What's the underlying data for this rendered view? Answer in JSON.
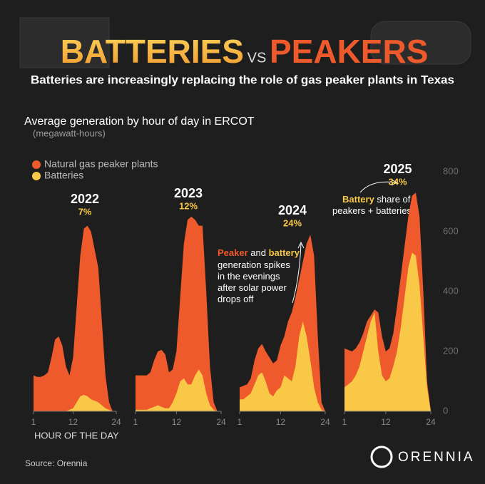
{
  "header": {
    "title_left": "BATTERIES",
    "title_vs": "VS",
    "title_right": "PEAKERS",
    "subtitle": "Batteries are increasingly replacing the role of gas peaker plants in Texas"
  },
  "chart_heading": "Average generation by hour of day in ERCOT",
  "units": "(megawatt-hours)",
  "x_axis_label": "HOUR OF THE DAY",
  "note_spikes": {
    "highlight_1": "Peaker",
    "text_1": " and ",
    "highlight_2": "battery",
    "lines": [
      "generation spikes",
      "in the evenings",
      "after solar power",
      "drops off"
    ]
  },
  "note_share": {
    "highlight": "Battery",
    "text": " share of",
    "line_2": "peakers + batteries"
  },
  "source": "Source: Orennia",
  "logo": "ORENNIA",
  "chart_data": [
    {
      "type": "area",
      "title": "2022",
      "annotation": "7%",
      "x": [
        1,
        2,
        3,
        4,
        5,
        6,
        7,
        8,
        9,
        10,
        11,
        12,
        13,
        14,
        15,
        16,
        17,
        18,
        19,
        20,
        21,
        22,
        23,
        24
      ],
      "xlim": [
        1,
        24
      ],
      "xticks": [
        1,
        12,
        24
      ],
      "ylim": [
        0,
        800
      ],
      "series": [
        {
          "name": "Natural gas peaker plants",
          "color": "#ee5a2c",
          "values": [
            120,
            115,
            115,
            120,
            130,
            180,
            240,
            250,
            220,
            150,
            120,
            180,
            350,
            520,
            610,
            620,
            600,
            540,
            480,
            300,
            120,
            30,
            0,
            0
          ]
        },
        {
          "name": "Batteries",
          "color": "#f9c846",
          "values": [
            0,
            0,
            0,
            0,
            0,
            0,
            0,
            0,
            0,
            0,
            5,
            10,
            30,
            50,
            55,
            50,
            40,
            35,
            30,
            20,
            10,
            5,
            0,
            0
          ]
        }
      ]
    },
    {
      "type": "area",
      "title": "2023",
      "annotation": "12%",
      "x": [
        1,
        2,
        3,
        4,
        5,
        6,
        7,
        8,
        9,
        10,
        11,
        12,
        13,
        14,
        15,
        16,
        17,
        18,
        19,
        20,
        21,
        22,
        23,
        24
      ],
      "xlim": [
        1,
        24
      ],
      "xticks": [
        1,
        12,
        24
      ],
      "ylim": [
        0,
        800
      ],
      "series": [
        {
          "name": "Natural gas peaker plants",
          "color": "#ee5a2c",
          "values": [
            120,
            120,
            120,
            120,
            130,
            170,
            200,
            205,
            190,
            130,
            140,
            200,
            380,
            560,
            640,
            650,
            640,
            620,
            620,
            400,
            150,
            30,
            0,
            0
          ]
        },
        {
          "name": "Batteries",
          "color": "#f9c846",
          "values": [
            5,
            5,
            5,
            5,
            10,
            15,
            20,
            15,
            10,
            10,
            30,
            60,
            100,
            110,
            90,
            90,
            120,
            140,
            120,
            60,
            20,
            5,
            0,
            0
          ]
        }
      ]
    },
    {
      "type": "area",
      "title": "2024",
      "annotation": "24%",
      "x": [
        1,
        2,
        3,
        4,
        5,
        6,
        7,
        8,
        9,
        10,
        11,
        12,
        13,
        14,
        15,
        16,
        17,
        18,
        19,
        20,
        21,
        22,
        23,
        24
      ],
      "xlim": [
        1,
        24
      ],
      "xticks": [
        1,
        12,
        24
      ],
      "ylim": [
        0,
        800
      ],
      "series": [
        {
          "name": "Natural gas peaker plants",
          "color": "#ee5a2c",
          "values": [
            80,
            85,
            90,
            110,
            170,
            210,
            225,
            200,
            180,
            160,
            170,
            220,
            250,
            300,
            330,
            380,
            440,
            500,
            560,
            590,
            520,
            250,
            30,
            0
          ]
        },
        {
          "name": "Batteries",
          "color": "#f9c846",
          "values": [
            40,
            40,
            50,
            60,
            90,
            120,
            130,
            100,
            60,
            50,
            70,
            80,
            120,
            110,
            100,
            150,
            250,
            300,
            250,
            170,
            80,
            30,
            5,
            0
          ]
        }
      ]
    },
    {
      "type": "area",
      "title": "2025",
      "annotation": "34%",
      "x": [
        1,
        2,
        3,
        4,
        5,
        6,
        7,
        8,
        9,
        10,
        11,
        12,
        13,
        14,
        15,
        16,
        17,
        18,
        19,
        20,
        21,
        22,
        23,
        24
      ],
      "xlim": [
        1,
        24
      ],
      "xticks": [
        1,
        12,
        24
      ],
      "ylim": [
        0,
        800
      ],
      "yticks": [
        0,
        200,
        400,
        600,
        800
      ],
      "series": [
        {
          "name": "Natural gas peaker plants",
          "color": "#ee5a2c",
          "values": [
            210,
            205,
            200,
            210,
            230,
            260,
            300,
            320,
            340,
            330,
            250,
            200,
            210,
            260,
            350,
            450,
            550,
            650,
            720,
            730,
            650,
            400,
            100,
            0
          ]
        },
        {
          "name": "Batteries",
          "color": "#f9c846",
          "values": [
            80,
            90,
            100,
            120,
            150,
            200,
            250,
            300,
            330,
            200,
            120,
            100,
            110,
            150,
            200,
            280,
            380,
            480,
            530,
            520,
            420,
            250,
            80,
            0
          ]
        }
      ]
    }
  ]
}
